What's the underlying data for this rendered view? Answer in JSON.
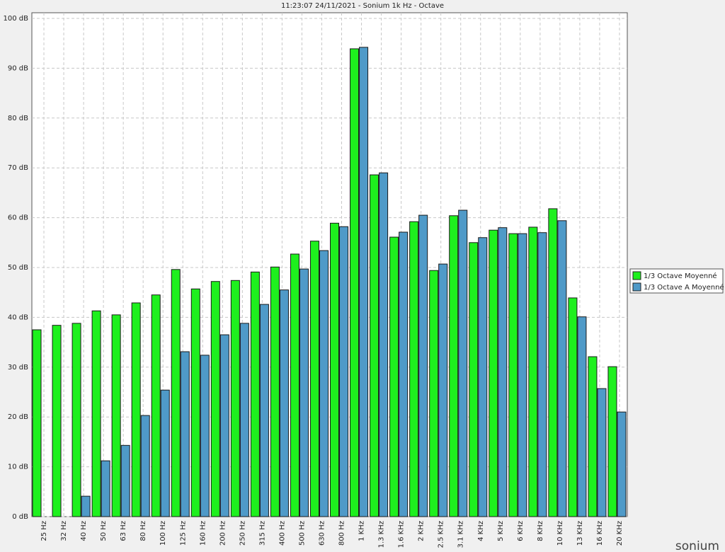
{
  "chart_data": {
    "type": "bar",
    "title": "11:23:07 24/11/2021 - Sonium 1k Hz - Octave",
    "categories": [
      "25 Hz",
      "32 Hz",
      "40 Hz",
      "50 Hz",
      "63 Hz",
      "80 Hz",
      "100 Hz",
      "125 Hz",
      "160 Hz",
      "200 Hz",
      "250 Hz",
      "315 Hz",
      "400 Hz",
      "500 Hz",
      "630 Hz",
      "800 Hz",
      "1 KHz",
      "1.3 KHz",
      "1.6 KHz",
      "2 KHz",
      "2.5 KHz",
      "3.1 KHz",
      "4 KHz",
      "5 KHz",
      "6 KHz",
      "8 KHz",
      "10 KHz",
      "13 KHz",
      "16 KHz",
      "20 KHz"
    ],
    "series": [
      {
        "name": "1/3 Octave Moyenné",
        "color": "#1ef01e",
        "values": [
          37.5,
          38.4,
          38.8,
          41.3,
          40.5,
          42.9,
          44.5,
          49.6,
          45.7,
          47.2,
          47.4,
          49.1,
          50.1,
          52.7,
          55.3,
          58.9,
          93.9,
          68.6,
          56.1,
          59.2,
          49.4,
          60.4,
          55.0,
          57.5,
          56.8,
          58.1,
          61.8,
          43.9,
          32.1,
          30.1
        ]
      },
      {
        "name": "1/3 Octave A Moyenné",
        "color": "#4f9ac8",
        "values": [
          null,
          null,
          4.1,
          11.2,
          14.3,
          20.3,
          25.4,
          33.1,
          32.4,
          36.5,
          38.8,
          42.6,
          45.5,
          49.7,
          53.4,
          58.2,
          94.2,
          69.0,
          57.1,
          60.5,
          50.7,
          61.5,
          56.0,
          58.0,
          56.8,
          57.0,
          59.4,
          40.1,
          25.7,
          21.0
        ]
      }
    ],
    "ylim": [
      0,
      100
    ],
    "yticks": [
      {
        "value": 0,
        "label": "0 dB"
      },
      {
        "value": 10,
        "label": "10 dB"
      },
      {
        "value": 20,
        "label": "20 dB"
      },
      {
        "value": 30,
        "label": "30 dB"
      },
      {
        "value": 40,
        "label": "40 dB"
      },
      {
        "value": 50,
        "label": "50 dB"
      },
      {
        "value": 60,
        "label": "60 dB"
      },
      {
        "value": 70,
        "label": "70 dB"
      },
      {
        "value": 80,
        "label": "80 dB"
      },
      {
        "value": 90,
        "label": "90 dB"
      },
      {
        "value": 100,
        "label": "100 dB"
      }
    ],
    "grid": true,
    "legend": "right",
    "logo": "sonium"
  }
}
